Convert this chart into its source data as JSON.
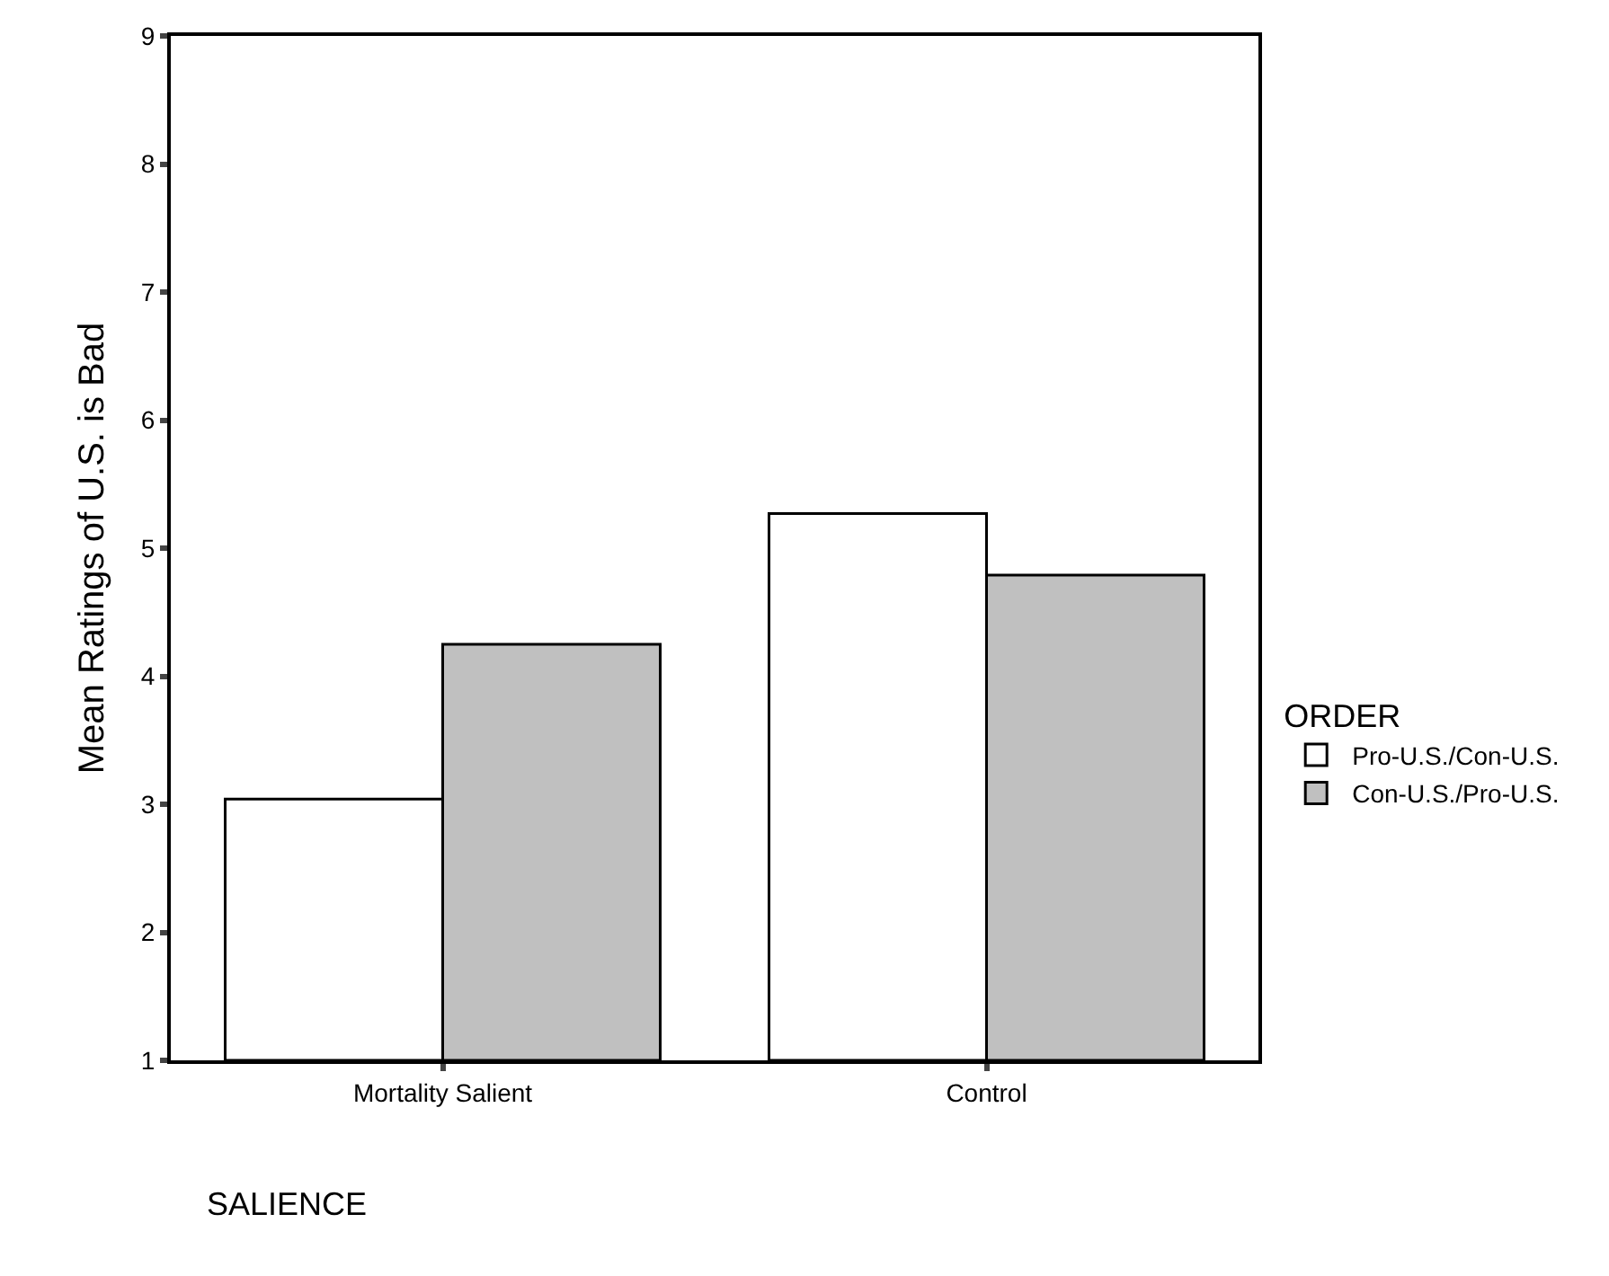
{
  "chart_data": {
    "type": "bar",
    "xlabel": "SALIENCE",
    "ylabel": "Mean Ratings of U.S. is Bad",
    "legend_title": "ORDER",
    "categories": [
      "Mortality Salient",
      "Control"
    ],
    "series": [
      {
        "name": "Pro-U.S./Con-U.S.",
        "color": "#ffffff",
        "values": [
          3.04,
          5.27
        ]
      },
      {
        "name": "Con-U.S./Pro-U.S.",
        "color": "#c0c0c0",
        "values": [
          4.25,
          4.79
        ]
      }
    ],
    "ylim": [
      1,
      9
    ],
    "yticks": [
      1,
      2,
      3,
      4,
      5,
      6,
      7,
      8,
      9
    ],
    "legend": "right"
  }
}
